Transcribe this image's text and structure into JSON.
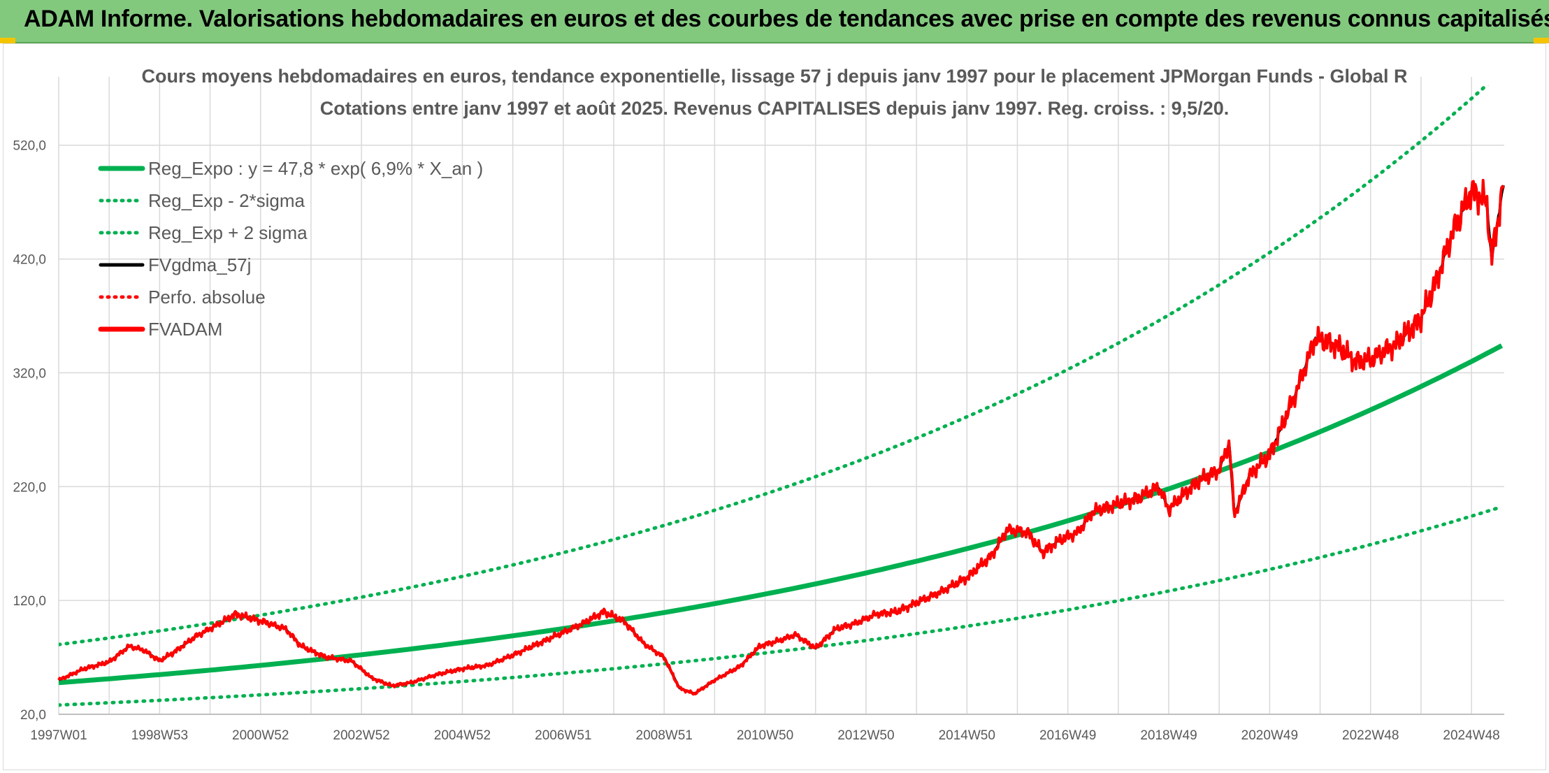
{
  "banner": {
    "title": "ADAM Informe. Valorisations hebdomadaires en euros et des courbes de tendances avec prise en compte des revenus connus capitalisés"
  },
  "colors": {
    "banner_bg": "#82c97e",
    "regression": "#00b050",
    "gdma": "#000000",
    "fvadam": "#ff0000",
    "grid": "#d9d9d9",
    "text": "#595959"
  },
  "chart_data": {
    "type": "line",
    "title": "Cours moyens hebdomadaires en euros, tendance exponentielle, lissage 57 j depuis janv 1997 pour le placement JPMorgan Funds - Global R",
    "subtitle": "Cotations entre janv 1997 et août 2025. Revenus CAPITALISES depuis janv 1997. Reg. croiss. : 9,5/20.",
    "xlabel": "",
    "ylabel": "",
    "ylim": [
      20,
      580
    ],
    "yticks": [
      "20,0",
      "120,0",
      "220,0",
      "320,0",
      "420,0",
      "520,0"
    ],
    "x_range_years": [
      1997.0,
      2025.65
    ],
    "xticks": [
      "1997W01",
      "1998W53",
      "2000W52",
      "2002W52",
      "2004W52",
      "2006W51",
      "2008W51",
      "2010W50",
      "2012W50",
      "2014W50",
      "2016W49",
      "2018W49",
      "2020W49",
      "2022W48",
      "2024W48"
    ],
    "grid": true,
    "legend_position": "top-left",
    "regression": {
      "a": 47.8,
      "rate": 0.069,
      "sigma_factor": 1.7
    },
    "series": [
      {
        "name": "Reg_Expo : y = 47,8 * exp( 6,9% *  X_an )",
        "style": "solid-thick",
        "color": "#00b050"
      },
      {
        "name": "Reg_Exp - 2*sigma",
        "style": "dotted",
        "color": "#00b050"
      },
      {
        "name": "Reg_Exp + 2 sigma",
        "style": "dotted",
        "color": "#00b050"
      },
      {
        "name": "FVgdma_57j",
        "style": "solid",
        "color": "#000000"
      },
      {
        "name": "Perfo. absolue",
        "style": "dotted",
        "color": "#ff0000"
      },
      {
        "name": "FVADAM",
        "style": "solid-thick",
        "color": "#ff0000"
      }
    ],
    "fvadam_points": [
      [
        1997.0,
        50
      ],
      [
        1997.5,
        60
      ],
      [
        1998.0,
        66
      ],
      [
        1998.4,
        80
      ],
      [
        1998.7,
        76
      ],
      [
        1999.0,
        67
      ],
      [
        1999.3,
        75
      ],
      [
        1999.7,
        88
      ],
      [
        2000.2,
        100
      ],
      [
        2000.5,
        108
      ],
      [
        2001.0,
        102
      ],
      [
        2001.5,
        95
      ],
      [
        2001.8,
        80
      ],
      [
        2002.3,
        70
      ],
      [
        2002.8,
        67
      ],
      [
        2003.2,
        52
      ],
      [
        2003.6,
        45
      ],
      [
        2004.0,
        48
      ],
      [
        2004.5,
        55
      ],
      [
        2005.0,
        60
      ],
      [
        2005.5,
        63
      ],
      [
        2006.0,
        72
      ],
      [
        2006.5,
        82
      ],
      [
        2007.0,
        92
      ],
      [
        2007.4,
        100
      ],
      [
        2007.8,
        110
      ],
      [
        2008.2,
        102
      ],
      [
        2008.6,
        82
      ],
      [
        2009.0,
        70
      ],
      [
        2009.3,
        43
      ],
      [
        2009.6,
        38
      ],
      [
        2010.0,
        50
      ],
      [
        2010.5,
        62
      ],
      [
        2010.9,
        80
      ],
      [
        2011.3,
        85
      ],
      [
        2011.6,
        90
      ],
      [
        2012.0,
        78
      ],
      [
        2012.4,
        95
      ],
      [
        2012.8,
        100
      ],
      [
        2013.2,
        108
      ],
      [
        2013.6,
        110
      ],
      [
        2014.0,
        118
      ],
      [
        2014.5,
        128
      ],
      [
        2015.0,
        140
      ],
      [
        2015.5,
        160
      ],
      [
        2015.8,
        182
      ],
      [
        2016.2,
        180
      ],
      [
        2016.5,
        162
      ],
      [
        2016.8,
        172
      ],
      [
        2017.2,
        180
      ],
      [
        2017.5,
        198
      ],
      [
        2018.0,
        205
      ],
      [
        2018.4,
        210
      ],
      [
        2018.8,
        220
      ],
      [
        2019.0,
        200
      ],
      [
        2019.5,
        222
      ],
      [
        2020.0,
        235
      ],
      [
        2020.2,
        258
      ],
      [
        2020.3,
        195
      ],
      [
        2020.6,
        230
      ],
      [
        2021.0,
        248
      ],
      [
        2021.5,
        300
      ],
      [
        2021.9,
        350
      ],
      [
        2022.3,
        345
      ],
      [
        2022.7,
        330
      ],
      [
        2023.0,
        332
      ],
      [
        2023.5,
        345
      ],
      [
        2024.0,
        368
      ],
      [
        2024.3,
        400
      ],
      [
        2024.6,
        440
      ],
      [
        2025.0,
        480
      ],
      [
        2025.3,
        470
      ],
      [
        2025.4,
        420
      ],
      [
        2025.65,
        490
      ]
    ]
  }
}
